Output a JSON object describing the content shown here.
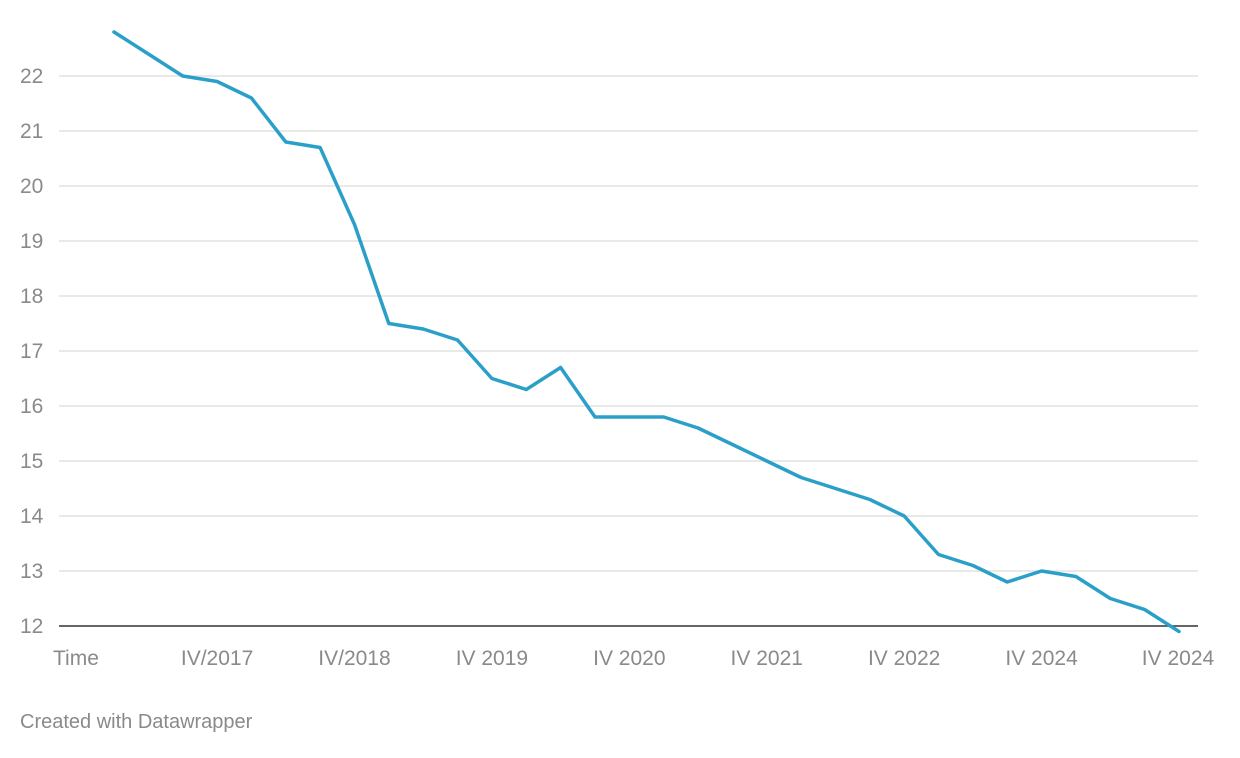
{
  "footer": {
    "credit": "Created with Datawrapper"
  },
  "colors": {
    "line": "#2aa0c9",
    "grid": "#e2e2e2",
    "baseline": "#333333",
    "text": "#8a8a8a"
  },
  "chart_data": {
    "type": "line",
    "title": "",
    "xlabel": "",
    "ylabel": "",
    "ylim": [
      12,
      23
    ],
    "yticks": [
      12,
      13,
      14,
      15,
      16,
      17,
      18,
      19,
      20,
      21,
      22
    ],
    "grid": true,
    "legend": "none",
    "x_tick_labels": [
      "Time",
      "IV/2017",
      "IV/2018",
      "IV 2019",
      "IV 2020",
      "IV 2021",
      "IV 2022",
      "IV 2024",
      "IV 2024"
    ],
    "x_tick_index": [
      0,
      3,
      7,
      11,
      15,
      19,
      23,
      27,
      31
    ],
    "series": [
      {
        "values": [
          22.8,
          22.4,
          22.0,
          21.9,
          21.6,
          20.8,
          20.7,
          19.3,
          17.5,
          17.4,
          17.2,
          16.5,
          16.3,
          16.7,
          15.8,
          15.8,
          15.8,
          15.6,
          15.3,
          15.0,
          14.7,
          14.5,
          14.3,
          14.0,
          13.3,
          13.1,
          12.8,
          13.0,
          12.9,
          12.5,
          12.3,
          11.9
        ]
      }
    ]
  }
}
